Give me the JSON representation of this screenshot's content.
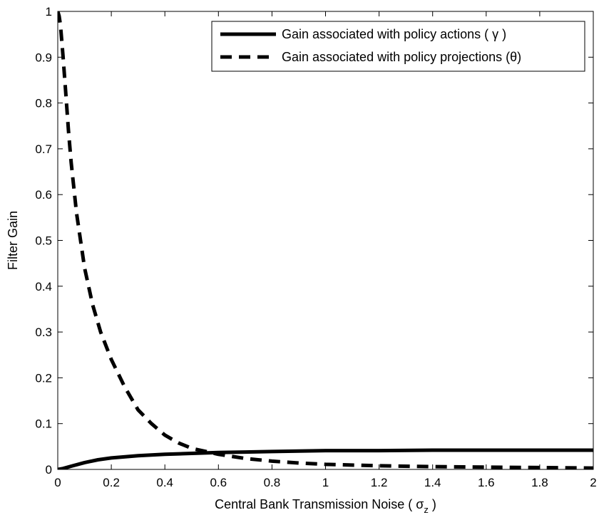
{
  "chart_data": {
    "type": "line",
    "title": "",
    "xlabel": "Central Bank Transmission Noise ( σ",
    "xlabel_subscript": "z",
    "xlabel_suffix": " )",
    "ylabel": "Filter Gain",
    "xlim": [
      0,
      2
    ],
    "ylim": [
      0,
      1
    ],
    "x_ticks": [
      0,
      0.2,
      0.4,
      0.6,
      0.8,
      1,
      1.2,
      1.4,
      1.6,
      1.8,
      2
    ],
    "x_tick_labels": [
      "0",
      "0.2",
      "0.4",
      "0.6",
      "0.8",
      "1",
      "1.2",
      "1.4",
      "1.6",
      "1.8",
      "2"
    ],
    "y_ticks": [
      0,
      0.1,
      0.2,
      0.3,
      0.4,
      0.5,
      0.6,
      0.7,
      0.8,
      0.9,
      1
    ],
    "y_tick_labels": [
      "0",
      "0.1",
      "0.2",
      "0.3",
      "0.4",
      "0.5",
      "0.6",
      "0.7",
      "0.8",
      "0.9",
      "1"
    ],
    "grid": false,
    "legend_position": "top-right",
    "series": [
      {
        "name": "Gain associated with policy actions ( γ )",
        "style": "solid",
        "x": [
          0,
          0.02,
          0.05,
          0.1,
          0.15,
          0.2,
          0.3,
          0.4,
          0.5,
          0.6,
          0.7,
          0.8,
          0.9,
          1.0,
          1.2,
          1.4,
          1.6,
          1.8,
          2.0
        ],
        "y": [
          0,
          0.002,
          0.007,
          0.015,
          0.021,
          0.025,
          0.03,
          0.033,
          0.035,
          0.037,
          0.038,
          0.039,
          0.04,
          0.041,
          0.041,
          0.042,
          0.042,
          0.042,
          0.042
        ]
      },
      {
        "name": "Gain associated with policy projections (θ)",
        "style": "dashed",
        "x": [
          0,
          0.005,
          0.01,
          0.02,
          0.03,
          0.04,
          0.05,
          0.07,
          0.1,
          0.13,
          0.16,
          0.2,
          0.25,
          0.3,
          0.35,
          0.4,
          0.45,
          0.5,
          0.6,
          0.7,
          0.8,
          0.9,
          1.0,
          1.2,
          1.4,
          1.6,
          1.8,
          2.0
        ],
        "y": [
          1.0,
          0.99,
          0.97,
          0.9,
          0.82,
          0.74,
          0.67,
          0.56,
          0.44,
          0.36,
          0.3,
          0.24,
          0.18,
          0.13,
          0.1,
          0.075,
          0.058,
          0.046,
          0.033,
          0.024,
          0.018,
          0.014,
          0.011,
          0.008,
          0.006,
          0.005,
          0.004,
          0.003
        ]
      }
    ]
  }
}
